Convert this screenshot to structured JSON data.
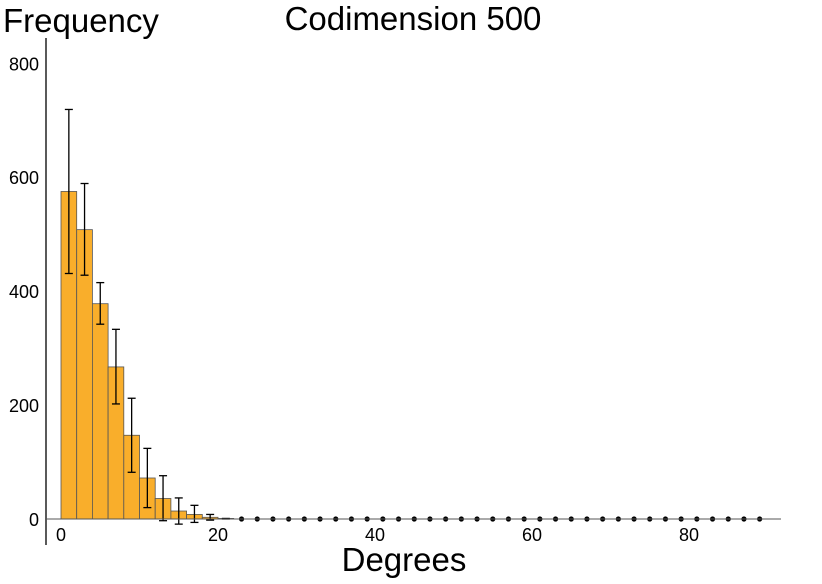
{
  "chart_data": {
    "type": "bar",
    "title": "Codimension 500",
    "xlabel": "Degrees",
    "ylabel": "Frequency",
    "xlim": [
      0,
      90
    ],
    "ylim": [
      0,
      800
    ],
    "xticks": [
      "0",
      "20",
      "40",
      "60",
      "80"
    ],
    "yticks": [
      "0",
      "200",
      "400",
      "600",
      "800"
    ],
    "bin_width": 2,
    "bar_color": "#F9AE2B",
    "bar_edge_color": "#555555",
    "errorbar_color": "#000000",
    "grid": false,
    "legend": false,
    "x": [
      1,
      3,
      5,
      7,
      9,
      11,
      13,
      15,
      17,
      19,
      21,
      23,
      25,
      27,
      29,
      31,
      33,
      35,
      37,
      39,
      41,
      43,
      45,
      47,
      49,
      51,
      53,
      55,
      57,
      59,
      61,
      63,
      65,
      67,
      69,
      71,
      73,
      75,
      77,
      79,
      81,
      83,
      85,
      87,
      89
    ],
    "values": [
      575,
      508,
      378,
      267,
      147,
      72,
      36,
      14,
      8,
      3,
      1,
      0,
      0,
      0,
      0,
      0,
      0,
      0,
      0,
      0,
      0,
      0,
      0,
      0,
      0,
      0,
      0,
      0,
      0,
      0,
      0,
      0,
      0,
      0,
      0,
      0,
      0,
      0,
      0,
      0,
      0,
      0,
      0,
      0,
      0
    ],
    "err_low": [
      431,
      428,
      342,
      202,
      82,
      20,
      -3,
      -9,
      -6,
      -2,
      0,
      0,
      0,
      0,
      0,
      0,
      0,
      0,
      0,
      0,
      0,
      0,
      0,
      0,
      0,
      0,
      0,
      0,
      0,
      0,
      0,
      0,
      0,
      0,
      0,
      0,
      0,
      0,
      0,
      0,
      0,
      0,
      0,
      0,
      0
    ],
    "err_high": [
      719,
      589,
      415,
      333,
      212,
      124,
      76,
      37,
      24,
      8,
      1,
      0,
      0,
      0,
      0,
      0,
      0,
      0,
      0,
      0,
      0,
      0,
      0,
      0,
      0,
      0,
      0,
      0,
      0,
      0,
      0,
      0,
      0,
      0,
      0,
      0,
      0,
      0,
      0,
      0,
      0,
      0,
      0,
      0,
      0
    ]
  }
}
